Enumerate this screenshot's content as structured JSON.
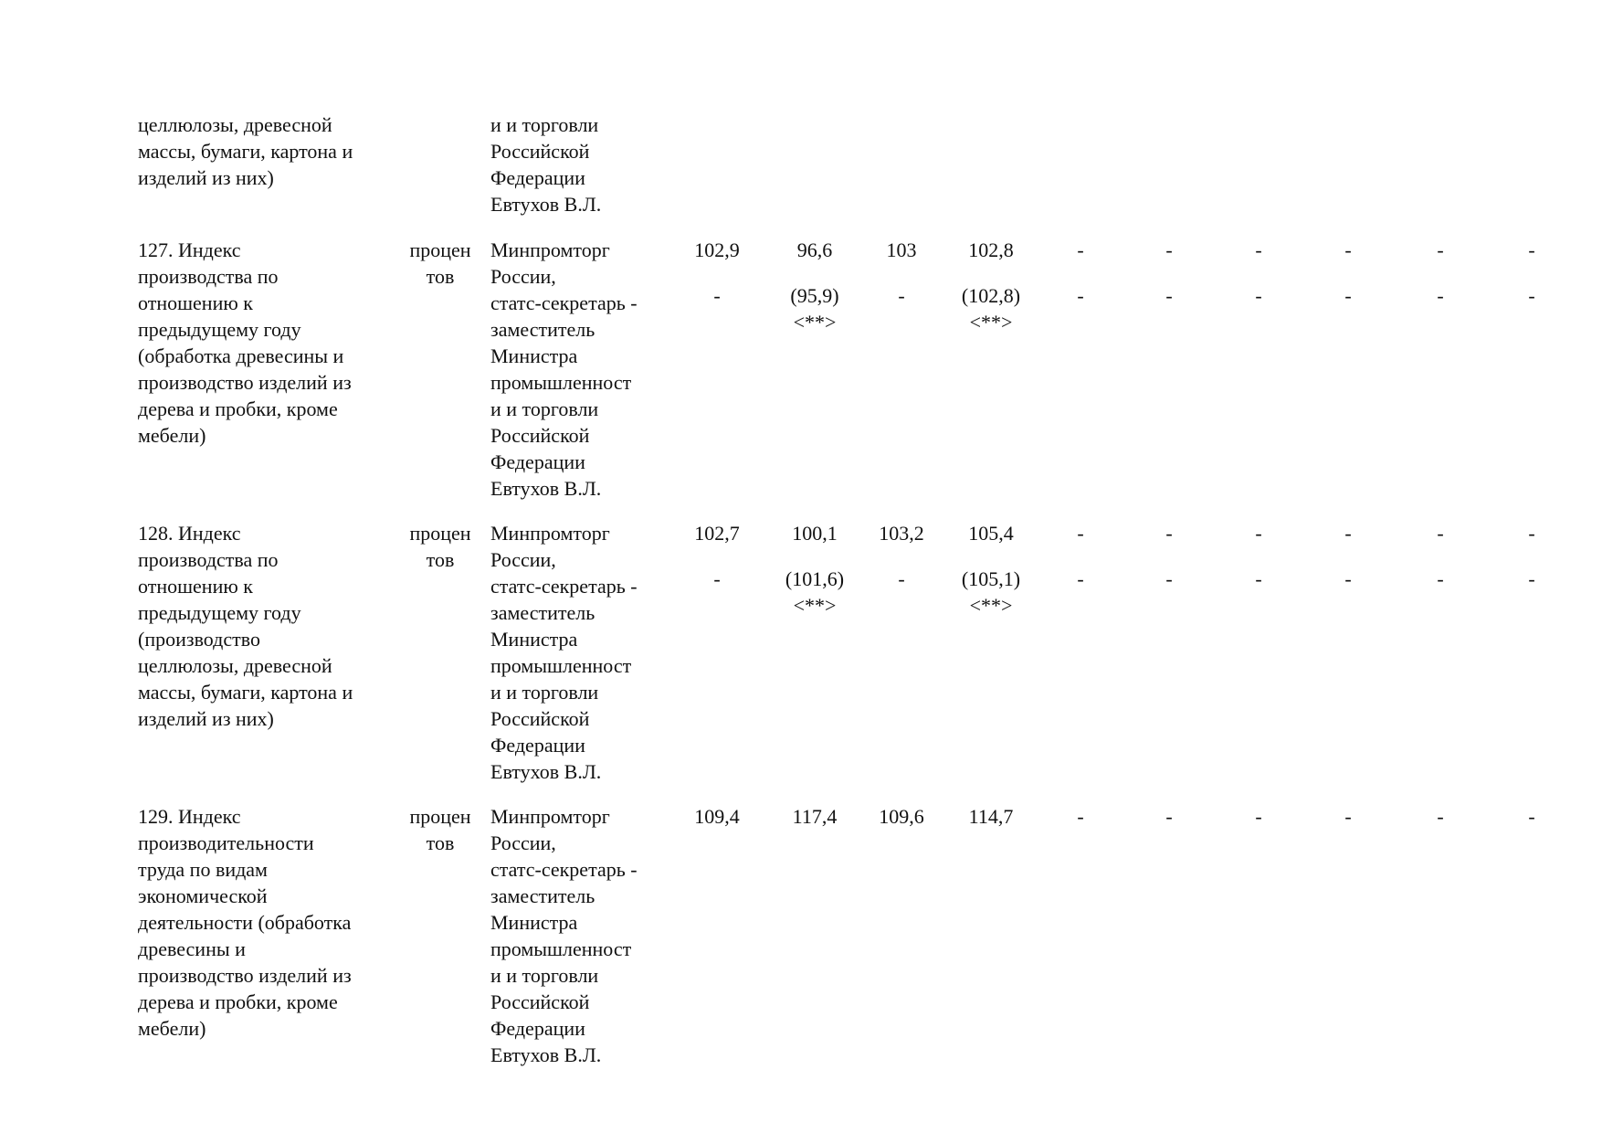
{
  "table": {
    "rows": [
      {
        "indicator": "целлюлозы, древесной\nмассы, бумаги, картона и\nизделий из них)",
        "unit": "",
        "responsible": "и и торговли\nРоссийской\nФедерации\nЕвтухов В.Л.",
        "values": []
      },
      {
        "indicator": "127. Индекс\nпроизводства по\nотношению к\nпредыдущему году\n(обработка древесины и\nпроизводство изделий из\nдерева и пробки, кроме\nмебели)",
        "unit": "процен\nтов",
        "responsible": "Минпромторг\nРоссии,\nстатс-секретарь -\nзаместитель\nМинистра\nпромышленност\nи и торговли\nРоссийской\nФедерации\nЕвтухов В.Л.",
        "values": [
          [
            "102,9",
            "-"
          ],
          [
            "96,6",
            "(95,9)\n<**>"
          ],
          [
            "103",
            "-"
          ],
          [
            "102,8",
            "(102,8)\n<**>"
          ],
          [
            "-",
            "-"
          ],
          [
            "-",
            "-"
          ],
          [
            "-",
            "-"
          ],
          [
            "-",
            "-"
          ],
          [
            "-",
            "-"
          ],
          [
            "-",
            "-"
          ]
        ]
      },
      {
        "indicator": "128. Индекс\nпроизводства по\nотношению к\nпредыдущему году\n(производство\nцеллюлозы, древесной\nмассы, бумаги, картона и\nизделий из них)",
        "unit": "процен\nтов",
        "responsible": "Минпромторг\nРоссии,\nстатс-секретарь -\nзаместитель\nМинистра\nпромышленност\nи и торговли\nРоссийской\nФедерации\nЕвтухов В.Л.",
        "values": [
          [
            "102,7",
            "-"
          ],
          [
            "100,1",
            "(101,6)\n<**>"
          ],
          [
            "103,2",
            "-"
          ],
          [
            "105,4",
            "(105,1)\n<**>"
          ],
          [
            "-",
            "-"
          ],
          [
            "-",
            "-"
          ],
          [
            "-",
            "-"
          ],
          [
            "-",
            "-"
          ],
          [
            "-",
            "-"
          ],
          [
            "-",
            "-"
          ]
        ]
      },
      {
        "indicator": "129. Индекс\nпроизводительности\nтруда по видам\nэкономической\nдеятельности (обработка\nдревесины и\nпроизводство изделий из\nдерева и пробки, кроме\nмебели)",
        "unit": "процен\nтов",
        "responsible": "Минпромторг\nРоссии,\nстатс-секретарь -\nзаместитель\nМинистра\nпромышленност\nи и торговли\nРоссийской\nФедерации\nЕвтухов В.Л.",
        "values": [
          [
            "109,4"
          ],
          [
            "117,4"
          ],
          [
            "109,6"
          ],
          [
            "114,7"
          ],
          [
            "-"
          ],
          [
            "-"
          ],
          [
            "-"
          ],
          [
            "-"
          ],
          [
            "-"
          ],
          [
            "-"
          ]
        ]
      }
    ]
  }
}
